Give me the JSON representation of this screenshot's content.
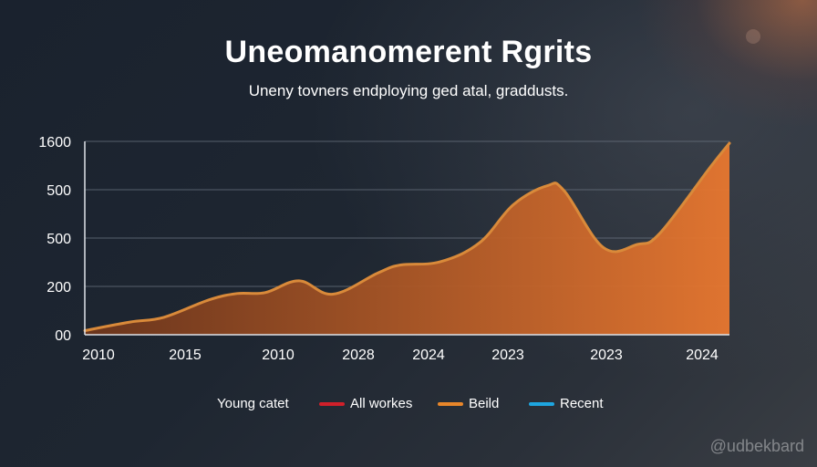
{
  "chart_data": {
    "type": "area",
    "title": "Uneomanomerent Rgrits",
    "subtitle": "Uneny tovners endploying ged atal, graddusts.",
    "xlabel": "",
    "ylabel": "",
    "y_tick_labels": [
      "00",
      "200",
      "500",
      "500",
      "1600"
    ],
    "x_tick_labels": [
      "2010",
      "2015",
      "2010",
      "2028",
      "2024",
      "2023",
      "2023",
      "2024"
    ],
    "grid": true,
    "series": [
      {
        "values": [
          {
            "x": 0.0,
            "y": 0.13
          },
          {
            "x": 0.08,
            "y": 0.4
          },
          {
            "x": 0.14,
            "y": 0.55
          },
          {
            "x": 0.22,
            "y": 1.1
          },
          {
            "x": 0.27,
            "y": 1.3
          },
          {
            "x": 0.32,
            "y": 1.33
          },
          {
            "x": 0.38,
            "y": 1.7
          },
          {
            "x": 0.44,
            "y": 1.28
          },
          {
            "x": 0.52,
            "y": 1.95
          },
          {
            "x": 0.56,
            "y": 2.2
          },
          {
            "x": 0.63,
            "y": 2.3
          },
          {
            "x": 0.7,
            "y": 2.9
          },
          {
            "x": 0.76,
            "y": 4.1
          },
          {
            "x": 0.82,
            "y": 4.7
          },
          {
            "x": 0.85,
            "y": 4.55
          },
          {
            "x": 0.92,
            "y": 2.75
          },
          {
            "x": 0.98,
            "y": 2.85
          },
          {
            "x": 1.02,
            "y": 3.2
          },
          {
            "x": 1.11,
            "y": 5.3
          },
          {
            "x": 1.16,
            "y": 6.1
          }
        ]
      }
    ],
    "colors": {
      "line": "#d98a3a",
      "fill_start": "#6e361c",
      "fill_end": "#e8772f",
      "grid": "#6a7380",
      "axis": "#e0e4ea"
    },
    "legend": [
      {
        "label": "Young catet",
        "color": ""
      },
      {
        "label": "All workes",
        "color": "#d0202a"
      },
      {
        "label": "Beild",
        "color": "#e8862a"
      },
      {
        "label": "Recent",
        "color": "#1ea6e0"
      }
    ]
  },
  "watermark": "@udbekbard"
}
